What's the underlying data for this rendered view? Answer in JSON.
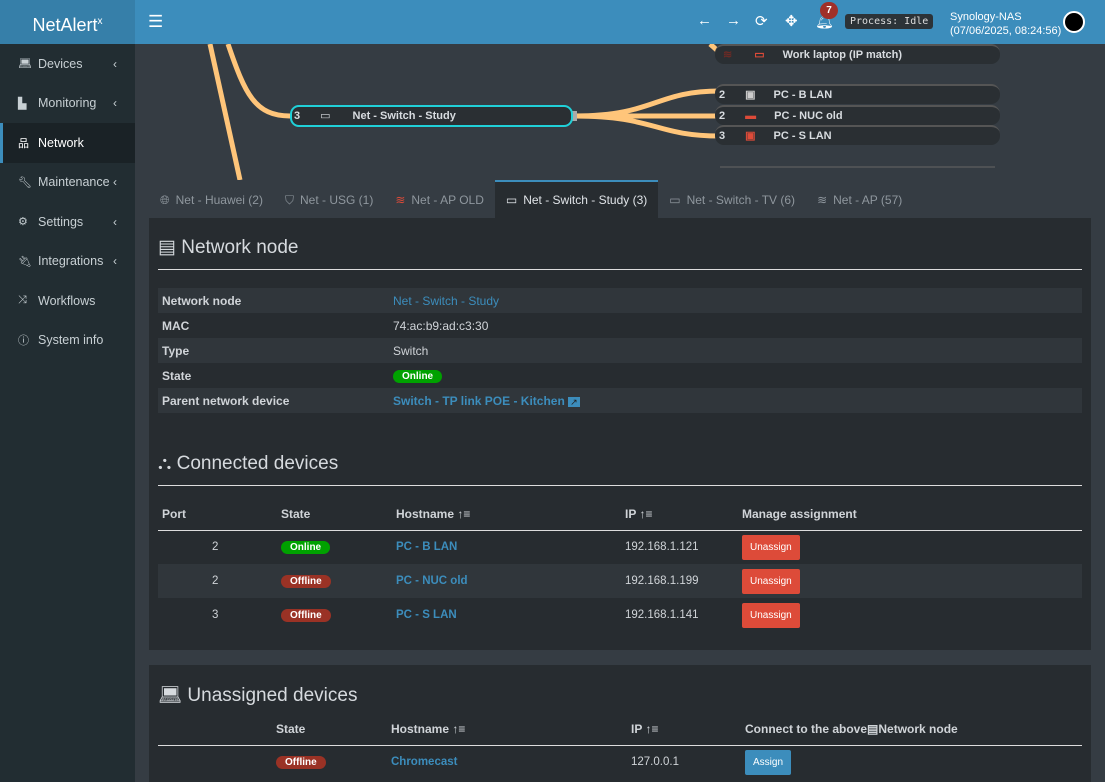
{
  "app": {
    "logo": "NetAlert",
    "logo_sup": "x",
    "process": "Process: Idle",
    "notifications": "7",
    "host": "Synology-NAS",
    "datetime": "(07/06/2025, 08:24:56)"
  },
  "sidebar": {
    "items": [
      {
        "label": "Devices",
        "icon": "laptop-icon"
      },
      {
        "label": "Monitoring",
        "icon": "chart-icon"
      },
      {
        "label": "Network",
        "icon": "network-icon"
      },
      {
        "label": "Maintenance",
        "icon": "wrench-icon"
      },
      {
        "label": "Settings",
        "icon": "gear-icon"
      },
      {
        "label": "Integrations",
        "icon": "plug-icon"
      },
      {
        "label": "Workflows",
        "icon": "shuffle-icon"
      },
      {
        "label": "System info",
        "icon": "info-icon"
      }
    ]
  },
  "tree": {
    "root": {
      "port": "3",
      "label": "Net - Switch - Study"
    },
    "top": {
      "label": "Work laptop (IP match)"
    },
    "children": [
      {
        "port": "2",
        "label": "PC - B LAN"
      },
      {
        "port": "2",
        "label": "PC - NUC old"
      },
      {
        "port": "3",
        "label": "PC - S LAN"
      }
    ]
  },
  "tabs": [
    {
      "label": "Net - Huawei (2)"
    },
    {
      "label": "Net - USG (1)"
    },
    {
      "label": "Net - AP OLD"
    },
    {
      "label": "Net - Switch - Study (3)"
    },
    {
      "label": "Net - Switch - TV (6)"
    },
    {
      "label": "Net - AP (57)"
    }
  ],
  "node": {
    "title": "Network node",
    "rows": [
      {
        "k": "Network node",
        "v": "Net - Switch - Study"
      },
      {
        "k": "MAC",
        "v": "74:ac:b9:ad:c3:30"
      },
      {
        "k": "Type",
        "v": "Switch"
      },
      {
        "k": "State",
        "v": "Online"
      },
      {
        "k": "Parent network device",
        "v": "Switch - TP link POE - Kitchen"
      }
    ]
  },
  "connected": {
    "title": "Connected devices",
    "headers": [
      "Port",
      "State",
      "Hostname",
      "IP",
      "Manage assignment"
    ],
    "rows": [
      {
        "port": "2",
        "state": "Online",
        "host": "PC - B LAN",
        "ip": "192.168.1.121",
        "btn": "Unassign"
      },
      {
        "port": "2",
        "state": "Offline",
        "host": "PC - NUC old",
        "ip": "192.168.1.199",
        "btn": "Unassign"
      },
      {
        "port": "3",
        "state": "Offline",
        "host": "PC - S LAN",
        "ip": "192.168.1.141",
        "btn": "Unassign"
      }
    ]
  },
  "unassigned": {
    "title": "Unassigned devices",
    "headers": [
      "State",
      "Hostname",
      "IP",
      "Connect to the above",
      "Network node"
    ],
    "rows": [
      {
        "state": "Offline",
        "host": "Chromecast",
        "ip": "127.0.0.1",
        "btn": "Assign"
      }
    ]
  }
}
